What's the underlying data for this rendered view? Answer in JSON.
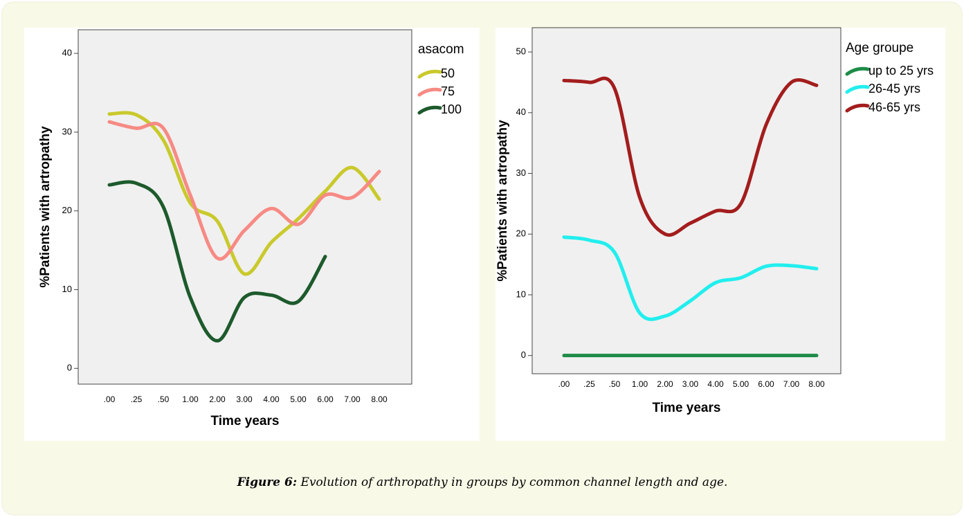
{
  "chart_data": [
    {
      "type": "line",
      "ylabel": "%Patients with artropathy",
      "xlabel": "Time years",
      "legend_title": "asacom",
      "categories": [
        ".00",
        ".25",
        ".50",
        "1.00",
        "2.00",
        "3.00",
        "4.00",
        "5.00",
        "6.00",
        "7.00",
        "8.00"
      ],
      "series": [
        {
          "name": "50",
          "color": "#c9c92c",
          "values": [
            32.3,
            32.2,
            29,
            21,
            18.7,
            12,
            16,
            19,
            22.5,
            25.5,
            21.5
          ]
        },
        {
          "name": "75",
          "color": "#f78a84",
          "values": [
            31.3,
            30.5,
            30.5,
            22,
            14,
            17.5,
            20.3,
            18.3,
            22,
            21.7,
            25
          ]
        },
        {
          "name": "100",
          "color": "#1d5a2c",
          "values": [
            23.3,
            23.5,
            20.5,
            9,
            3.5,
            9,
            9.3,
            8.5,
            14.2,
            null,
            null
          ]
        }
      ],
      "ylim": [
        -2,
        43
      ],
      "yticks": [
        0,
        10,
        20,
        30,
        40
      ],
      "grid": false
    },
    {
      "type": "line",
      "ylabel": "%Patients with artropathy",
      "xlabel": "Time years",
      "legend_title": "Age groupe",
      "categories": [
        ".00",
        ".25",
        ".50",
        "1.00",
        "2.00",
        "3.00",
        "4.00",
        "5.00",
        "6.00",
        "7.00",
        "8.00"
      ],
      "series": [
        {
          "name": "up to 25 yrs",
          "color": "#1e8c48",
          "values": [
            0,
            0,
            0,
            0,
            0,
            0,
            0,
            0,
            0,
            0,
            0
          ]
        },
        {
          "name": "26-45 yrs",
          "color": "#22eeee",
          "values": [
            19.5,
            19,
            17,
            7,
            6.5,
            9,
            12,
            12.8,
            14.7,
            14.8,
            14.3
          ]
        },
        {
          "name": "46-65 yrs",
          "color": "#a31d1d",
          "values": [
            45.3,
            45,
            44,
            26,
            20,
            21.8,
            23.8,
            25,
            38,
            45,
            44.5
          ]
        }
      ],
      "ylim": [
        -3,
        54
      ],
      "yticks": [
        0,
        10,
        20,
        30,
        40,
        50
      ],
      "grid": false
    }
  ],
  "caption": {
    "label": "Figure 6:",
    "text": "Evolution of arthropathy in groups by common channel length and age."
  }
}
